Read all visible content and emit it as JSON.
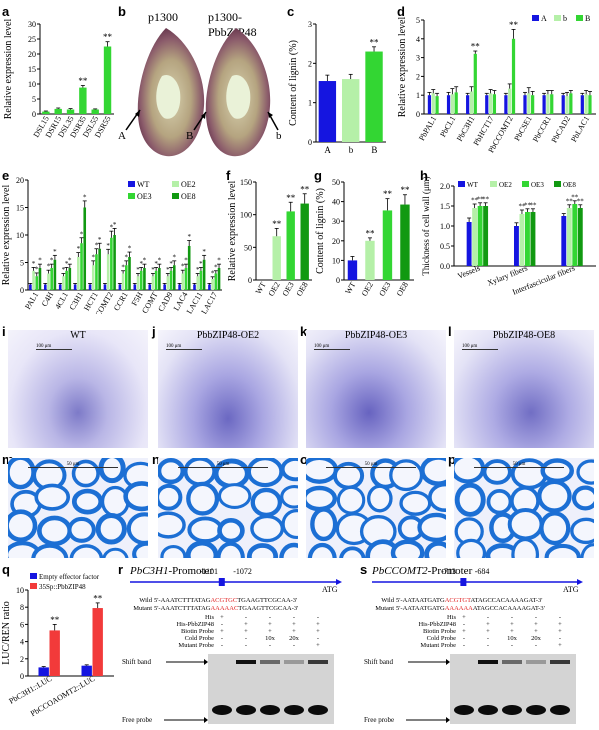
{
  "panel_letters": [
    "a",
    "b",
    "c",
    "d",
    "e",
    "f",
    "g",
    "h",
    "i",
    "j",
    "k",
    "l",
    "m",
    "n",
    "o",
    "p",
    "q",
    "r",
    "s"
  ],
  "b": {
    "left_title": "p1300",
    "right_title": "p1300-PbbZIP48",
    "markers": [
      "A",
      "B",
      "b"
    ]
  },
  "micro": {
    "titles": [
      "WT",
      "PbbZIP48-OE2",
      "PbbZIP48-OE3",
      "PbbZIP48-OE8"
    ],
    "scale_top": "100 μm",
    "scale_bottom": "50 μm"
  },
  "r": {
    "title_gene": "PbC3H1",
    "title_suffix": "-Promoter",
    "pos1": "-1101",
    "pos2": "-1072",
    "atg": "ATG",
    "wild_label": "Wild",
    "mutant_label": "Mutant",
    "wild_pre": "5'-AAATCTTTATAG",
    "wild_core": "ACGTGC",
    "wild_post": "TGAAGTTCGCAA-3'",
    "mutant_pre": "5'-AAATCTTTATAG",
    "mutant_core": "AAAAAC",
    "mutant_post": "TGAAGTTCGCAA-3'",
    "rows": [
      "His",
      "His-PbbZIP48",
      "Biotin Probe",
      "Cold Probe",
      "Mutant Probe"
    ],
    "values": [
      [
        "+",
        "-",
        "-",
        "-",
        "-"
      ],
      [
        "-",
        "+",
        "+",
        "+",
        "+"
      ],
      [
        "+",
        "+",
        "+",
        "+",
        "+"
      ],
      [
        "-",
        "-",
        "10x",
        "20x",
        "-"
      ],
      [
        "-",
        "-",
        "-",
        "-",
        "+"
      ]
    ],
    "shift_label": "Shift band",
    "free_label": "Free probe"
  },
  "s": {
    "title_gene": "PbCCOMT2",
    "title_suffix": "-Promoter",
    "pos1": "-713",
    "pos2": "-684",
    "atg": "ATG",
    "wild_label": "Wild",
    "mutant_label": "Mutant",
    "wild_pre": "5'-AATAATGATG",
    "wild_core": "ACGTGT",
    "wild_post": "ATAGCCACAAAAGAT-3'",
    "mutant_pre": "5'-AATAATGATG",
    "mutant_core": "AAAAAA",
    "mutant_post": "ATAGCCACAAAAGAT-3'",
    "rows": [
      "His",
      "His-PbbZIP48",
      "Biotin Probe",
      "Cold Probe",
      "Mutant Probe"
    ],
    "values": [
      [
        "+",
        "-",
        "-",
        "-",
        "-"
      ],
      [
        "-",
        "+",
        "+",
        "+",
        "+"
      ],
      [
        "+",
        "+",
        "+",
        "+",
        "+"
      ],
      [
        "-",
        "-",
        "10x",
        "20x",
        "-"
      ],
      [
        "-",
        "-",
        "-",
        "-",
        "+"
      ]
    ],
    "shift_label": "Shift band",
    "free_label": "Free probe"
  },
  "chart_data": [
    {
      "id": "a",
      "type": "bar",
      "ylabel": "Relative expression level",
      "ylim": [
        0,
        30
      ],
      "yticks": [
        0,
        5,
        10,
        15,
        20,
        25,
        30
      ],
      "categories": [
        "DSL15",
        "DSR15",
        "DSL35",
        "DSR35",
        "DSL55",
        "DSR55"
      ],
      "values": [
        0.8,
        1.7,
        1.5,
        8.8,
        1.5,
        22.5
      ],
      "errors": [
        0.2,
        0.3,
        0.3,
        0.7,
        0.2,
        1.6
      ],
      "sig": [
        "",
        "",
        "",
        "**",
        "",
        "**"
      ]
    },
    {
      "id": "c",
      "type": "bar",
      "ylabel": "Content of lignin (%)",
      "ylim": [
        0,
        3
      ],
      "yticks": [
        0,
        1,
        2,
        3
      ],
      "categories": [
        "A",
        "b",
        "B"
      ],
      "values": [
        1.55,
        1.6,
        2.3
      ],
      "errors": [
        0.15,
        0.12,
        0.12
      ],
      "sig": [
        "",
        "",
        "**"
      ]
    },
    {
      "id": "d",
      "type": "bar",
      "ylabel": "Relative expression level",
      "ylim": [
        0,
        5
      ],
      "yticks": [
        0,
        1,
        2,
        3,
        4,
        5
      ],
      "legend": [
        "A",
        "b",
        "B"
      ],
      "categories": [
        "PbPAL1",
        "PbCL1",
        "PbC3H1",
        "PbHCT17",
        "PbCCOMT2",
        "PbCSE1",
        "PbCCR1",
        "PbCAD2",
        "PbLAC1"
      ],
      "series": [
        {
          "name": "A",
          "values": [
            1,
            1,
            1,
            1,
            1,
            1,
            1,
            1,
            1
          ],
          "errors": [
            0.15,
            0.15,
            0.1,
            0.1,
            0.1,
            0.15,
            0.1,
            0.1,
            0.1
          ]
        },
        {
          "name": "b",
          "values": [
            1.1,
            1.05,
            1.2,
            1.1,
            1.35,
            1.1,
            1.05,
            0.95,
            1.05
          ],
          "errors": [
            0.2,
            0.3,
            0.25,
            0.2,
            0.25,
            0.3,
            0.2,
            0.2,
            0.2
          ]
        },
        {
          "name": "B",
          "values": [
            0.95,
            1.15,
            3.2,
            1.05,
            4.0,
            1.0,
            1.05,
            1.1,
            1.0
          ],
          "errors": [
            0.15,
            0.3,
            0.15,
            0.2,
            0.5,
            0.2,
            0.2,
            0.15,
            0.2
          ]
        }
      ],
      "sig": [
        [
          "",
          "",
          ""
        ],
        [
          "",
          "",
          ""
        ],
        [
          "",
          "",
          "**"
        ],
        [
          "",
          "",
          ""
        ],
        [
          "",
          "",
          "**"
        ],
        [
          "",
          "",
          ""
        ],
        [
          "",
          "",
          ""
        ],
        [
          "",
          "",
          ""
        ],
        [
          "",
          "",
          ""
        ]
      ]
    },
    {
      "id": "e",
      "type": "bar",
      "ylabel": "Relative expression level",
      "ylim": [
        0,
        20
      ],
      "yticks": [
        0,
        5,
        10,
        15,
        20
      ],
      "legend": [
        "WT",
        "OE2",
        "OE3",
        "OE8"
      ],
      "categories": [
        "PAL1",
        "C4H",
        "4CL1",
        "C3H1",
        "HCT1",
        "CCOMT2",
        "CCR1",
        "F5H",
        "COMT",
        "CAD9",
        "LAC4",
        "LAC11",
        "LAC17"
      ],
      "series": [
        {
          "name": "WT",
          "values": [
            1,
            1,
            1,
            1,
            1,
            1,
            1,
            1,
            1,
            1,
            1,
            1,
            1
          ],
          "errors": [
            0.2,
            0.2,
            0.2,
            0.2,
            0.2,
            0.2,
            0.2,
            0.2,
            0.2,
            0.2,
            0.2,
            0.2,
            0.2
          ]
        },
        {
          "name": "OE2",
          "values": [
            3.5,
            3.0,
            2.5,
            6.0,
            4.5,
            6.5,
            3.0,
            2.5,
            2.5,
            2.5,
            3.0,
            2.5,
            2.0
          ],
          "errors": [
            0.6,
            0.6,
            0.5,
            0.8,
            0.8,
            0.9,
            0.5,
            0.5,
            0.5,
            0.5,
            0.6,
            0.5,
            0.4
          ]
        },
        {
          "name": "OE3",
          "values": [
            2.5,
            4.0,
            3.5,
            8.5,
            6.5,
            9.5,
            4.5,
            3.5,
            3.5,
            3.5,
            4.0,
            3.5,
            3.0
          ],
          "errors": [
            0.6,
            0.7,
            0.6,
            1.0,
            1.0,
            1.2,
            0.8,
            0.6,
            0.6,
            0.6,
            0.7,
            0.6,
            0.5
          ]
        },
        {
          "name": "OE8",
          "values": [
            4.0,
            5.5,
            4.0,
            15.0,
            7.5,
            10.0,
            6.0,
            4.0,
            4.0,
            4.5,
            8.0,
            5.5,
            4.0
          ],
          "errors": [
            0.7,
            0.8,
            0.7,
            1.2,
            1.0,
            1.2,
            0.9,
            0.7,
            0.7,
            0.8,
            1.0,
            0.8,
            0.7
          ]
        }
      ],
      "sig_mark": "*"
    },
    {
      "id": "f",
      "type": "bar",
      "ylabel": "Relative expression level",
      "ylim": [
        0,
        150
      ],
      "yticks": [
        0,
        50,
        100,
        150
      ],
      "categories": [
        "WT",
        "OE2",
        "OE3",
        "OE8"
      ],
      "values": [
        0,
        67,
        105,
        117
      ],
      "errors": [
        0,
        12,
        14,
        15
      ],
      "sig": [
        "",
        "**",
        "**",
        "**"
      ]
    },
    {
      "id": "g",
      "type": "bar",
      "ylabel": "Content of lignin (%)",
      "ylim": [
        0,
        50
      ],
      "yticks": [
        0,
        10,
        20,
        30,
        40,
        50
      ],
      "categories": [
        "WT",
        "OE2",
        "OE3",
        "OE8"
      ],
      "values": [
        10,
        20,
        35.5,
        38.5
      ],
      "errors": [
        2,
        1.5,
        6,
        5
      ],
      "sig": [
        "",
        "**",
        "**",
        "**"
      ]
    },
    {
      "id": "h",
      "type": "bar",
      "ylabel": "Thickness of cell wall (μm)",
      "ylim": [
        0,
        2.0
      ],
      "yticks": [
        0.0,
        0.5,
        1.0,
        1.5,
        2.0
      ],
      "legend": [
        "WT",
        "OE2",
        "OE3",
        "OE8"
      ],
      "categories": [
        "Vessels",
        "Xylary fibers",
        "Interfascicular fibers"
      ],
      "series": [
        {
          "name": "WT",
          "values": [
            1.1,
            1.0,
            1.25
          ],
          "errors": [
            0.1,
            0.08,
            0.06
          ]
        },
        {
          "name": "OE2",
          "values": [
            1.45,
            1.3,
            1.45
          ],
          "errors": [
            0.1,
            0.1,
            0.08
          ]
        },
        {
          "name": "OE3",
          "values": [
            1.5,
            1.35,
            1.55
          ],
          "errors": [
            0.08,
            0.08,
            0.08
          ]
        },
        {
          "name": "OE8",
          "values": [
            1.5,
            1.35,
            1.45
          ],
          "errors": [
            0.08,
            0.08,
            0.08
          ]
        }
      ],
      "sig_mark": "**"
    },
    {
      "id": "q",
      "type": "bar",
      "ylabel": "LUC/REN ratio",
      "ylim": [
        0,
        10
      ],
      "yticks": [
        0,
        2,
        4,
        6,
        8,
        10
      ],
      "legend": [
        "Empty effector factor",
        "35Sp::PbbZIP48"
      ],
      "categories": [
        "PbC3H1::LUC",
        "PbCCOAOMT2::LUC"
      ],
      "series": [
        {
          "name": "Empty effector factor",
          "values": [
            1.0,
            1.2
          ],
          "errors": [
            0.1,
            0.1
          ]
        },
        {
          "name": "35Sp::PbbZIP48",
          "values": [
            5.3,
            7.9
          ],
          "errors": [
            0.7,
            0.6
          ]
        }
      ],
      "sig": [
        [
          "",
          "**"
        ],
        [
          "",
          "**"
        ]
      ]
    }
  ],
  "colors": {
    "blue": "#1515e0",
    "lightgreen": "#b5f0a8",
    "green": "#33d633",
    "red": "#f23a3a"
  }
}
